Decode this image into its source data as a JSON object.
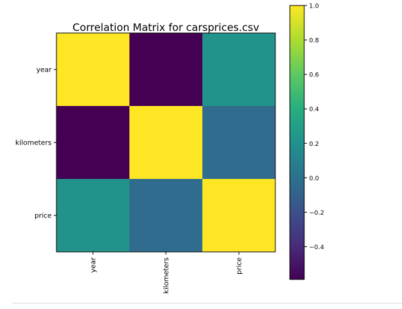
{
  "chart_data": {
    "type": "heatmap",
    "title": "Correlation Matrix for carsprices.csv",
    "xlabel": "",
    "ylabel": "",
    "row_labels": [
      "year",
      "kilometers",
      "price"
    ],
    "col_labels": [
      "year",
      "kilometers",
      "price"
    ],
    "values": [
      [
        1.0,
        -0.59,
        0.22
      ],
      [
        -0.59,
        1.0,
        -0.03
      ],
      [
        0.22,
        -0.03,
        1.0
      ]
    ],
    "colormap": "viridis",
    "colorbar": {
      "vmin": -0.59,
      "vmax": 1.0,
      "ticks": [
        -0.4,
        -0.2,
        0.0,
        0.2,
        0.4,
        0.6,
        0.8,
        1.0
      ],
      "tick_labels": [
        "−0.4",
        "−0.2",
        "0.0",
        "0.2",
        "0.4",
        "0.6",
        "0.8",
        "1.0"
      ]
    },
    "grid": false,
    "legend": "colorbar-right"
  }
}
